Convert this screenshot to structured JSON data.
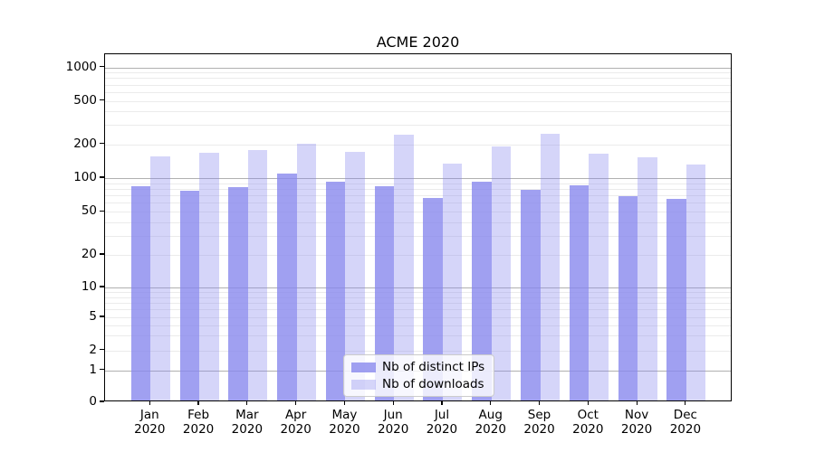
{
  "chart_data": {
    "type": "bar",
    "title": "ACME 2020",
    "categories": [
      "Jan",
      "Feb",
      "Mar",
      "Apr",
      "May",
      "Jun",
      "Jul",
      "Aug",
      "Sep",
      "Oct",
      "Nov",
      "Dec"
    ],
    "x_year_label": "2020",
    "series": [
      {
        "name": "Nb of distinct IPs",
        "color_rgba": "rgba(136,136,238,0.8)",
        "values": [
          82,
          74,
          80,
          106,
          90,
          82,
          64,
          90,
          75,
          83,
          67,
          63
        ]
      },
      {
        "name": "Nb of downloads",
        "color_rgba": "rgba(136,136,238,0.35)",
        "values": [
          150,
          161,
          171,
          194,
          166,
          235,
          130,
          184,
          239,
          160,
          147,
          128
        ]
      }
    ],
    "yscale": "symlog",
    "y_ticks": [
      1000,
      500,
      200,
      100,
      50,
      20,
      10,
      5,
      2,
      1,
      0
    ],
    "ylim": [
      0,
      1300
    ],
    "grid": true,
    "legend_position": "lower center"
  },
  "colors": {
    "bar_base": "#8888ee",
    "major_grid": "#b0b0b0",
    "minor_grid": "#ebebeb",
    "spine": "#000000",
    "text": "#000000"
  }
}
